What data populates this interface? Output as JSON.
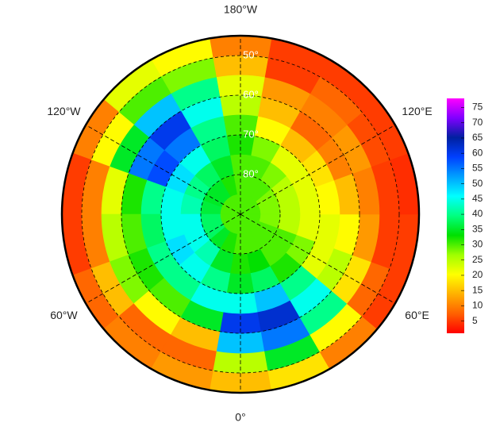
{
  "chart_data": {
    "type": "polar-grid",
    "lat_edges": [
      45,
      50,
      55,
      60,
      65,
      70,
      75,
      80,
      85,
      90
    ],
    "lon_centers": [
      0,
      20,
      40,
      60,
      80,
      100,
      120,
      140,
      160,
      180,
      200,
      220,
      240,
      260,
      280,
      300,
      320,
      340
    ],
    "values": [
      [
        15,
        25,
        50,
        60,
        45,
        35,
        32,
        30,
        30
      ],
      [
        18,
        35,
        55,
        62,
        50,
        38,
        33,
        30,
        30
      ],
      [
        10,
        20,
        40,
        45,
        40,
        32,
        30,
        30,
        30
      ],
      [
        5,
        8,
        18,
        25,
        22,
        28,
        30,
        30,
        30
      ],
      [
        5,
        5,
        12,
        20,
        22,
        22,
        25,
        28,
        30
      ],
      [
        4,
        5,
        10,
        15,
        20,
        22,
        25,
        28,
        30
      ],
      [
        5,
        6,
        12,
        10,
        18,
        22,
        25,
        28,
        30
      ],
      [
        5,
        8,
        10,
        8,
        15,
        22,
        28,
        30,
        30
      ],
      [
        5,
        5,
        12,
        15,
        20,
        28,
        30,
        30,
        30
      ],
      [
        10,
        15,
        22,
        25,
        30,
        32,
        30,
        30,
        30
      ],
      [
        20,
        28,
        40,
        45,
        40,
        38,
        35,
        32,
        30
      ],
      [
        22,
        30,
        50,
        60,
        55,
        45,
        38,
        35,
        30
      ],
      [
        10,
        20,
        35,
        55,
        58,
        48,
        40,
        35,
        30
      ],
      [
        5,
        10,
        22,
        32,
        40,
        45,
        42,
        36,
        30
      ],
      [
        5,
        10,
        25,
        30,
        38,
        45,
        45,
        38,
        30
      ],
      [
        8,
        15,
        28,
        32,
        40,
        48,
        45,
        38,
        30
      ],
      [
        10,
        8,
        20,
        30,
        40,
        45,
        42,
        35,
        30
      ],
      [
        12,
        8,
        15,
        35,
        45,
        40,
        35,
        32,
        30
      ]
    ],
    "lat_ticks": [
      {
        "value": 50,
        "label": "50°"
      },
      {
        "value": 60,
        "label": "60°"
      },
      {
        "value": 70,
        "label": "70°"
      },
      {
        "value": 80,
        "label": "80°"
      }
    ],
    "lon_ticks": [
      {
        "value": -180,
        "label": "180°W"
      },
      {
        "value": 120,
        "label": "120°E"
      },
      {
        "value": 60,
        "label": "60°E"
      },
      {
        "value": 0,
        "label": "0°"
      },
      {
        "value": -60,
        "label": "60°W"
      },
      {
        "value": -120,
        "label": "120°W"
      }
    ],
    "clim": [
      1,
      78
    ],
    "cticks": [
      5,
      10,
      15,
      20,
      25,
      30,
      35,
      40,
      45,
      50,
      55,
      60,
      65,
      70,
      75
    ],
    "colors": [
      "#ff0000",
      "#ff6000",
      "#ffb000",
      "#ffff00",
      "#a0ff00",
      "#00e000",
      "#00ff80",
      "#00ffff",
      "#00a0ff",
      "#0040ff",
      "#0020a0",
      "#8000ff",
      "#ff00ff"
    ]
  }
}
